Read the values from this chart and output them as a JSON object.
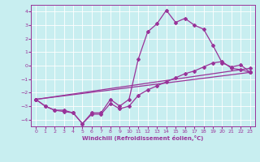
{
  "xlabel": "Windchill (Refroidissement éolien,°C)",
  "xlim": [
    -0.5,
    23.5
  ],
  "ylim": [
    -4.5,
    4.5
  ],
  "xticks": [
    0,
    1,
    2,
    3,
    4,
    5,
    6,
    7,
    8,
    9,
    10,
    11,
    12,
    13,
    14,
    15,
    16,
    17,
    18,
    19,
    20,
    21,
    22,
    23
  ],
  "yticks": [
    -4,
    -3,
    -2,
    -1,
    0,
    1,
    2,
    3,
    4
  ],
  "bg_color": "#c8eef0",
  "line_color": "#993399",
  "line1_x": [
    0,
    1,
    2,
    3,
    4,
    5,
    6,
    7,
    8,
    9,
    10,
    11,
    12,
    13,
    14,
    15,
    16,
    17,
    18,
    19,
    20,
    21,
    22,
    23
  ],
  "line1_y": [
    -2.5,
    -3.0,
    -3.3,
    -3.3,
    -3.5,
    -4.3,
    -3.5,
    -3.5,
    -2.5,
    -3.0,
    -2.5,
    0.5,
    2.5,
    3.1,
    4.1,
    3.2,
    3.5,
    3.0,
    2.7,
    1.5,
    0.2,
    -0.1,
    0.05,
    -0.5
  ],
  "line2_x": [
    0,
    1,
    2,
    3,
    4,
    5,
    6,
    7,
    8,
    9,
    10,
    11,
    12,
    13,
    14,
    15,
    16,
    17,
    18,
    19,
    20,
    21,
    22,
    23
  ],
  "line2_y": [
    -2.5,
    -3.0,
    -3.3,
    -3.4,
    -3.5,
    -4.3,
    -3.6,
    -3.6,
    -2.8,
    -3.2,
    -3.0,
    -2.2,
    -1.8,
    -1.5,
    -1.2,
    -0.9,
    -0.6,
    -0.4,
    -0.1,
    0.2,
    0.3,
    -0.2,
    -0.3,
    -0.5
  ],
  "line3_x": [
    0,
    23
  ],
  "line3_y": [
    -2.5,
    -0.5
  ],
  "line4_x": [
    0,
    23
  ],
  "line4_y": [
    -2.5,
    -0.2
  ]
}
